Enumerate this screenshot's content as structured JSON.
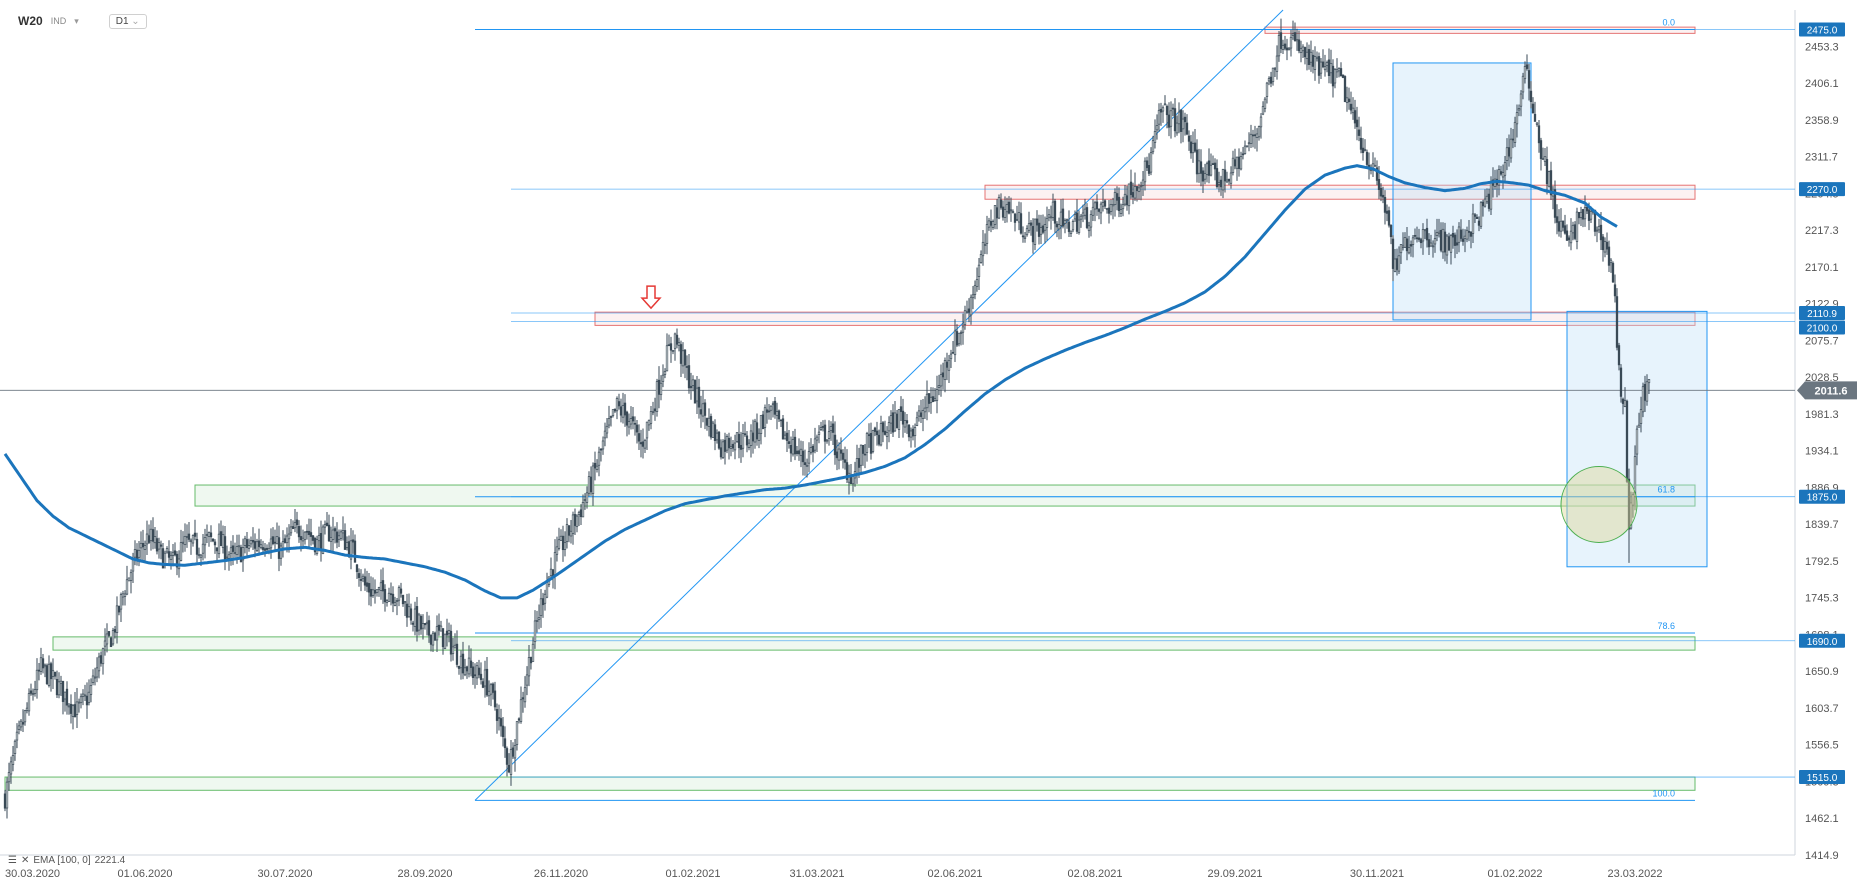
{
  "header": {
    "symbol": "W20",
    "exchange": "IND",
    "dropdown_icon": "chevron-down-icon",
    "timeframe": "D1"
  },
  "indicator": {
    "label": "EMA [100, 0]",
    "value": "2221.4",
    "icons": [
      "list-icon",
      "close-icon"
    ]
  },
  "colors": {
    "candle": "#3a4a57",
    "ema": "#1b75bc",
    "trendline": "#2196f3",
    "red_zone": "#e57373",
    "green_zone": "#66bb6a",
    "box_fill": "#e3f0fa",
    "price_tag": "#1b75bc",
    "circle_fill": "#e8e3b8",
    "circle_stroke": "#4caf50",
    "arrow": "#e53935"
  },
  "chart_data": {
    "type": "candlestick",
    "ylim": [
      1414.9,
      2500
    ],
    "yticks": [
      "2453.3",
      "2406.1",
      "2358.9",
      "2311.7",
      "2264.5",
      "2217.3",
      "2170.1",
      "2122.9",
      "2075.7",
      "2028.5",
      "1981.3",
      "1934.1",
      "1886.9",
      "1839.7",
      "1792.5",
      "1745.3",
      "1698.1",
      "1650.9",
      "1603.7",
      "1556.5",
      "1509.3",
      "1462.1",
      "1414.9"
    ],
    "xticks": [
      "30.03.2020",
      "01.06.2020",
      "30.07.2020",
      "28.09.2020",
      "26.11.2020",
      "01.02.2021",
      "31.03.2021",
      "02.06.2021",
      "02.08.2021",
      "29.09.2021",
      "30.11.2021",
      "01.02.2022",
      "23.03.2022"
    ],
    "anchors": [
      [
        0,
        1490
      ],
      [
        6,
        1560
      ],
      [
        12,
        1610
      ],
      [
        18,
        1655
      ],
      [
        24,
        1640
      ],
      [
        30,
        1620
      ],
      [
        36,
        1600
      ],
      [
        42,
        1620
      ],
      [
        48,
        1670
      ],
      [
        54,
        1700
      ],
      [
        60,
        1760
      ],
      [
        66,
        1800
      ],
      [
        72,
        1825
      ],
      [
        78,
        1800
      ],
      [
        84,
        1790
      ],
      [
        90,
        1815
      ],
      [
        96,
        1810
      ],
      [
        102,
        1820
      ],
      [
        108,
        1815
      ],
      [
        114,
        1795
      ],
      [
        120,
        1810
      ],
      [
        126,
        1815
      ],
      [
        132,
        1820
      ],
      [
        138,
        1805
      ],
      [
        144,
        1830
      ],
      [
        150,
        1835
      ],
      [
        156,
        1815
      ],
      [
        162,
        1830
      ],
      [
        168,
        1825
      ],
      [
        174,
        1805
      ],
      [
        180,
        1760
      ],
      [
        186,
        1750
      ],
      [
        192,
        1755
      ],
      [
        198,
        1745
      ],
      [
        204,
        1720
      ],
      [
        210,
        1700
      ],
      [
        216,
        1700
      ],
      [
        222,
        1690
      ],
      [
        228,
        1665
      ],
      [
        234,
        1650
      ],
      [
        240,
        1640
      ],
      [
        246,
        1600
      ],
      [
        249,
        1560
      ],
      [
        252,
        1530
      ],
      [
        258,
        1610
      ],
      [
        264,
        1690
      ],
      [
        270,
        1760
      ],
      [
        276,
        1800
      ],
      [
        282,
        1830
      ],
      [
        288,
        1860
      ],
      [
        294,
        1900
      ],
      [
        300,
        1950
      ],
      [
        306,
        1990
      ],
      [
        312,
        1975
      ],
      [
        318,
        1940
      ],
      [
        324,
        1990
      ],
      [
        330,
        2050
      ],
      [
        335,
        2080
      ],
      [
        340,
        2040
      ],
      [
        346,
        2000
      ],
      [
        352,
        1970
      ],
      [
        358,
        1940
      ],
      [
        364,
        1950
      ],
      [
        370,
        1945
      ],
      [
        376,
        1960
      ],
      [
        382,
        1990
      ],
      [
        388,
        1960
      ],
      [
        394,
        1940
      ],
      [
        400,
        1920
      ],
      [
        406,
        1950
      ],
      [
        412,
        1960
      ],
      [
        418,
        1920
      ],
      [
        424,
        1900
      ],
      [
        430,
        1940
      ],
      [
        436,
        1950
      ],
      [
        442,
        1965
      ],
      [
        448,
        1980
      ],
      [
        454,
        1960
      ],
      [
        460,
        1990
      ],
      [
        466,
        2010
      ],
      [
        472,
        2060
      ],
      [
        478,
        2090
      ],
      [
        484,
        2140
      ],
      [
        490,
        2200
      ],
      [
        494,
        2240
      ],
      [
        500,
        2250
      ],
      [
        506,
        2230
      ],
      [
        512,
        2215
      ],
      [
        518,
        2220
      ],
      [
        524,
        2240
      ],
      [
        530,
        2220
      ],
      [
        536,
        2230
      ],
      [
        542,
        2235
      ],
      [
        548,
        2245
      ],
      [
        554,
        2250
      ],
      [
        560,
        2260
      ],
      [
        566,
        2280
      ],
      [
        572,
        2300
      ],
      [
        578,
        2370
      ],
      [
        584,
        2360
      ],
      [
        590,
        2350
      ],
      [
        596,
        2300
      ],
      [
        602,
        2290
      ],
      [
        608,
        2280
      ],
      [
        614,
        2295
      ],
      [
        620,
        2320
      ],
      [
        626,
        2345
      ],
      [
        632,
        2410
      ],
      [
        638,
        2465
      ],
      [
        644,
        2460
      ],
      [
        650,
        2440
      ],
      [
        656,
        2425
      ],
      [
        662,
        2420
      ],
      [
        668,
        2410
      ],
      [
        674,
        2360
      ],
      [
        680,
        2320
      ],
      [
        686,
        2280
      ],
      [
        692,
        2230
      ],
      [
        694,
        2160
      ],
      [
        700,
        2200
      ],
      [
        706,
        2215
      ],
      [
        712,
        2210
      ],
      [
        718,
        2205
      ],
      [
        724,
        2200
      ],
      [
        730,
        2215
      ],
      [
        736,
        2230
      ],
      [
        742,
        2260
      ],
      [
        748,
        2290
      ],
      [
        754,
        2340
      ],
      [
        760,
        2420
      ],
      [
        764,
        2380
      ],
      [
        768,
        2320
      ],
      [
        772,
        2280
      ],
      [
        776,
        2230
      ],
      [
        782,
        2200
      ],
      [
        788,
        2240
      ],
      [
        794,
        2230
      ],
      [
        800,
        2200
      ],
      [
        804,
        2160
      ],
      [
        806,
        2080
      ],
      [
        808,
        2010
      ],
      [
        810,
        1990
      ],
      [
        812,
        1820
      ],
      [
        814,
        1890
      ],
      [
        816,
        1950
      ],
      [
        818,
        2000
      ],
      [
        822,
        2011
      ]
    ],
    "ema_anchors": [
      [
        0,
        1930
      ],
      [
        8,
        1900
      ],
      [
        16,
        1870
      ],
      [
        24,
        1850
      ],
      [
        32,
        1835
      ],
      [
        40,
        1825
      ],
      [
        48,
        1815
      ],
      [
        56,
        1805
      ],
      [
        64,
        1795
      ],
      [
        72,
        1790
      ],
      [
        80,
        1788
      ],
      [
        90,
        1787
      ],
      [
        100,
        1790
      ],
      [
        110,
        1793
      ],
      [
        120,
        1797
      ],
      [
        130,
        1803
      ],
      [
        140,
        1808
      ],
      [
        150,
        1810
      ],
      [
        160,
        1806
      ],
      [
        170,
        1800
      ],
      [
        180,
        1797
      ],
      [
        190,
        1795
      ],
      [
        200,
        1790
      ],
      [
        210,
        1785
      ],
      [
        220,
        1778
      ],
      [
        230,
        1768
      ],
      [
        240,
        1754
      ],
      [
        248,
        1745
      ],
      [
        256,
        1745
      ],
      [
        264,
        1755
      ],
      [
        272,
        1768
      ],
      [
        280,
        1782
      ],
      [
        290,
        1800
      ],
      [
        300,
        1818
      ],
      [
        310,
        1833
      ],
      [
        320,
        1845
      ],
      [
        330,
        1857
      ],
      [
        340,
        1866
      ],
      [
        350,
        1871
      ],
      [
        360,
        1876
      ],
      [
        370,
        1880
      ],
      [
        380,
        1884
      ],
      [
        390,
        1886
      ],
      [
        400,
        1890
      ],
      [
        410,
        1895
      ],
      [
        420,
        1900
      ],
      [
        430,
        1906
      ],
      [
        440,
        1914
      ],
      [
        450,
        1925
      ],
      [
        460,
        1942
      ],
      [
        470,
        1962
      ],
      [
        480,
        1985
      ],
      [
        490,
        2007
      ],
      [
        500,
        2025
      ],
      [
        510,
        2040
      ],
      [
        520,
        2052
      ],
      [
        530,
        2063
      ],
      [
        540,
        2073
      ],
      [
        550,
        2082
      ],
      [
        560,
        2092
      ],
      [
        570,
        2103
      ],
      [
        580,
        2113
      ],
      [
        590,
        2124
      ],
      [
        600,
        2138
      ],
      [
        610,
        2158
      ],
      [
        620,
        2183
      ],
      [
        630,
        2213
      ],
      [
        640,
        2243
      ],
      [
        650,
        2270
      ],
      [
        660,
        2288
      ],
      [
        670,
        2297
      ],
      [
        676,
        2300
      ],
      [
        684,
        2296
      ],
      [
        692,
        2286
      ],
      [
        700,
        2278
      ],
      [
        710,
        2272
      ],
      [
        720,
        2268
      ],
      [
        730,
        2271
      ],
      [
        738,
        2277
      ],
      [
        746,
        2280
      ],
      [
        754,
        2278
      ],
      [
        762,
        2275
      ],
      [
        770,
        2268
      ],
      [
        780,
        2262
      ],
      [
        790,
        2252
      ],
      [
        798,
        2234
      ],
      [
        806,
        2222
      ]
    ],
    "last_price": "2011.6",
    "price_tags": [
      {
        "label": "2475.0",
        "value": 2475.0
      },
      {
        "label": "2270.0",
        "value": 2270.0
      },
      {
        "label": "2110.9",
        "value": 2110.9
      },
      {
        "label": "2100.0",
        "value": 2100.0
      },
      {
        "label": "1875.0",
        "value": 1875.0
      },
      {
        "label": "1690.0",
        "value": 1690.0
      },
      {
        "label": "1515.0",
        "value": 1515.0
      }
    ],
    "fib_levels": [
      {
        "label": "0.0",
        "value": 2475
      },
      {
        "label": "61.8",
        "value": 1875
      },
      {
        "label": "78.6",
        "value": 1700
      },
      {
        "label": "100.0",
        "value": 1485
      }
    ],
    "zones": [
      {
        "type": "red",
        "x0": 295,
        "x1": 845,
        "low": 2095,
        "high": 2112
      },
      {
        "type": "red",
        "x0": 490,
        "x1": 845,
        "low": 2257,
        "high": 2275
      },
      {
        "type": "red",
        "x0": 630,
        "x1": 845,
        "low": 2470,
        "high": 2478
      },
      {
        "type": "green",
        "x0": 95,
        "x1": 845,
        "low": 1863,
        "high": 1890
      },
      {
        "type": "green",
        "x0": 24,
        "x1": 845,
        "low": 1678,
        "high": 1695
      },
      {
        "type": "green",
        "x0": 0,
        "x1": 845,
        "low": 1498,
        "high": 1515
      }
    ],
    "boxes": [
      {
        "x0": 694,
        "x1": 763,
        "low": 2102,
        "high": 2432
      },
      {
        "x0": 781,
        "x1": 851,
        "low": 1785,
        "high": 2113
      }
    ],
    "signal_arrow": {
      "x": 323,
      "price": 2112
    },
    "highlight_circle": {
      "x": 797,
      "price": 1865
    }
  }
}
